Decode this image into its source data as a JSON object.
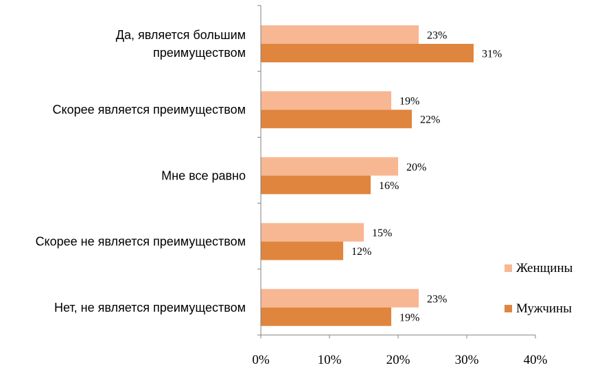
{
  "chart_data": {
    "type": "bar",
    "orientation": "horizontal",
    "categories": [
      [
        "Да, является большим",
        "преимуществом"
      ],
      [
        "Скорее является преимуществом"
      ],
      [
        "Мне все равно"
      ],
      [
        "Скорее не является преимуществом"
      ],
      [
        "Нет, не является преимуществом"
      ]
    ],
    "series": [
      {
        "name": "Женщины",
        "values": [
          23,
          19,
          20,
          15,
          23
        ],
        "color": "#f8b793"
      },
      {
        "name": "Мужчины",
        "values": [
          31,
          22,
          16,
          12,
          19
        ],
        "color": "#e0853e"
      }
    ],
    "value_suffix": "%",
    "xlim": [
      0,
      40
    ],
    "xticks": [
      0,
      10,
      20,
      30,
      40
    ],
    "xtick_labels": [
      "0%",
      "10%",
      "20%",
      "30%",
      "40%"
    ],
    "grid": false,
    "legend_position": "right"
  }
}
